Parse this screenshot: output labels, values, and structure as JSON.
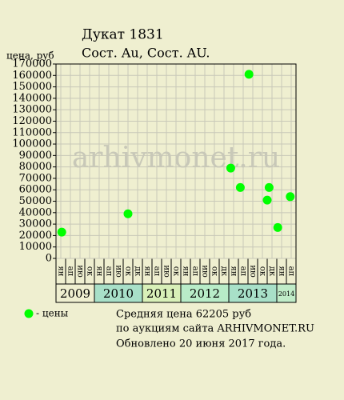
{
  "chart_data": {
    "type": "scatter",
    "title": "Дукат 1831",
    "subtitle": "Сост. Au, Сост. AU.",
    "y_label": "цена, руб",
    "categories": [
      "ян",
      "ап",
      "ию",
      "ок",
      "ян",
      "ап",
      "ию",
      "ок",
      "дк",
      "ян",
      "ап",
      "ию",
      "ок",
      "ян",
      "ап",
      "ию",
      "ок",
      "дк",
      "ян",
      "ап",
      "ию",
      "ок",
      "дк",
      "ян",
      "ап"
    ],
    "year_bands": [
      {
        "label": "2009",
        "start": 0,
        "end": 4
      },
      {
        "label": "2010",
        "start": 4,
        "end": 9
      },
      {
        "label": "2011",
        "start": 9,
        "end": 13
      },
      {
        "label": "2012",
        "start": 13,
        "end": 18
      },
      {
        "label": "2013",
        "start": 18,
        "end": 23
      },
      {
        "label": "2014",
        "start": 23,
        "end": 25
      }
    ],
    "series": [
      {
        "name": "- цены",
        "color": "#00ff00",
        "x": [
          0.6,
          7.5,
          18.2,
          19.2,
          20.1,
          22.0,
          22.2,
          23.1,
          24.4
        ],
        "values": [
          23000,
          39000,
          79000,
          62000,
          161000,
          51000,
          62000,
          27000,
          54000
        ]
      }
    ],
    "xlim": [
      0,
      25
    ],
    "ylim": [
      0,
      170000
    ],
    "yticks": [
      0,
      10000,
      20000,
      30000,
      40000,
      50000,
      60000,
      70000,
      80000,
      90000,
      100000,
      110000,
      120000,
      130000,
      140000,
      150000,
      160000,
      170000
    ],
    "grid": true,
    "watermark": "ARHIVMONET.RU",
    "notes": [
      "Средняя цена 62205 руб",
      "по аукциям сайта ARHIVMONET.RU",
      "Обновлено 20 июня 2017 года."
    ]
  }
}
